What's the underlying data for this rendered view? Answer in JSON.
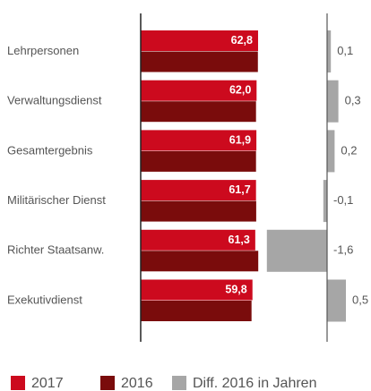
{
  "chart_data": {
    "type": "bar",
    "orientation": "horizontal",
    "categories": [
      "Lehrpersonen",
      "Verwaltungsdienst",
      "Gesamtergebnis",
      "Militärischer Dienst",
      "Richter Staatsanw.",
      "Exekutivdienst"
    ],
    "series": [
      {
        "name": "2017",
        "color": "#cc0a1e",
        "values": [
          62.8,
          62.0,
          61.9,
          61.7,
          61.3,
          59.8
        ],
        "value_labels": [
          "62,8",
          "62,0",
          "61,9",
          "61,7",
          "61,3",
          "59,8"
        ]
      },
      {
        "name": "2016",
        "color": "#7a0c0c",
        "values": [
          62.7,
          61.7,
          61.7,
          61.8,
          62.9,
          59.3
        ]
      },
      {
        "name": "Diff. 2016 in Jahren",
        "color": "#a6a6a6",
        "axis": "x2",
        "values": [
          0.1,
          0.3,
          0.2,
          -0.1,
          -1.6,
          0.5
        ],
        "value_labels": [
          "0,1",
          "0,3",
          "0,2",
          "-0,1",
          "-1,6",
          "0,5"
        ]
      }
    ],
    "xlim": [
      0,
      70
    ],
    "x2lim": [
      -2,
      1
    ]
  }
}
